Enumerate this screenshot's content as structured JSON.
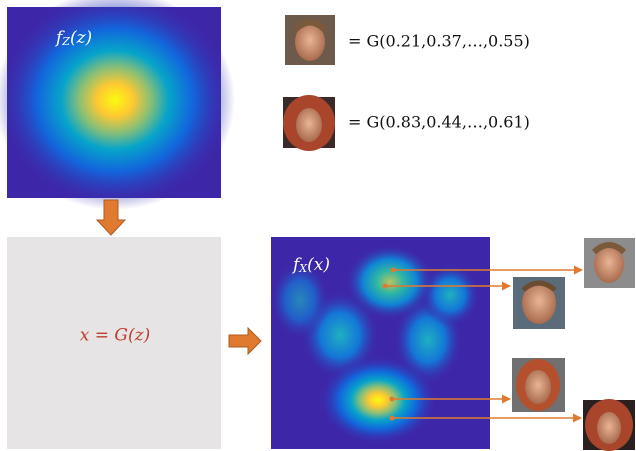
{
  "latent_density": {
    "base": "f",
    "subscript": "Z",
    "argument": "(z)"
  },
  "generator_box": {
    "label": "x = G(z)"
  },
  "data_density": {
    "base": "f",
    "subscript": "X",
    "argument": "(x)"
  },
  "examples": [
    {
      "equation": "= G(0.21,0.37,…,0.55)"
    },
    {
      "equation": "= G(0.83,0.44,…,0.61)"
    }
  ]
}
